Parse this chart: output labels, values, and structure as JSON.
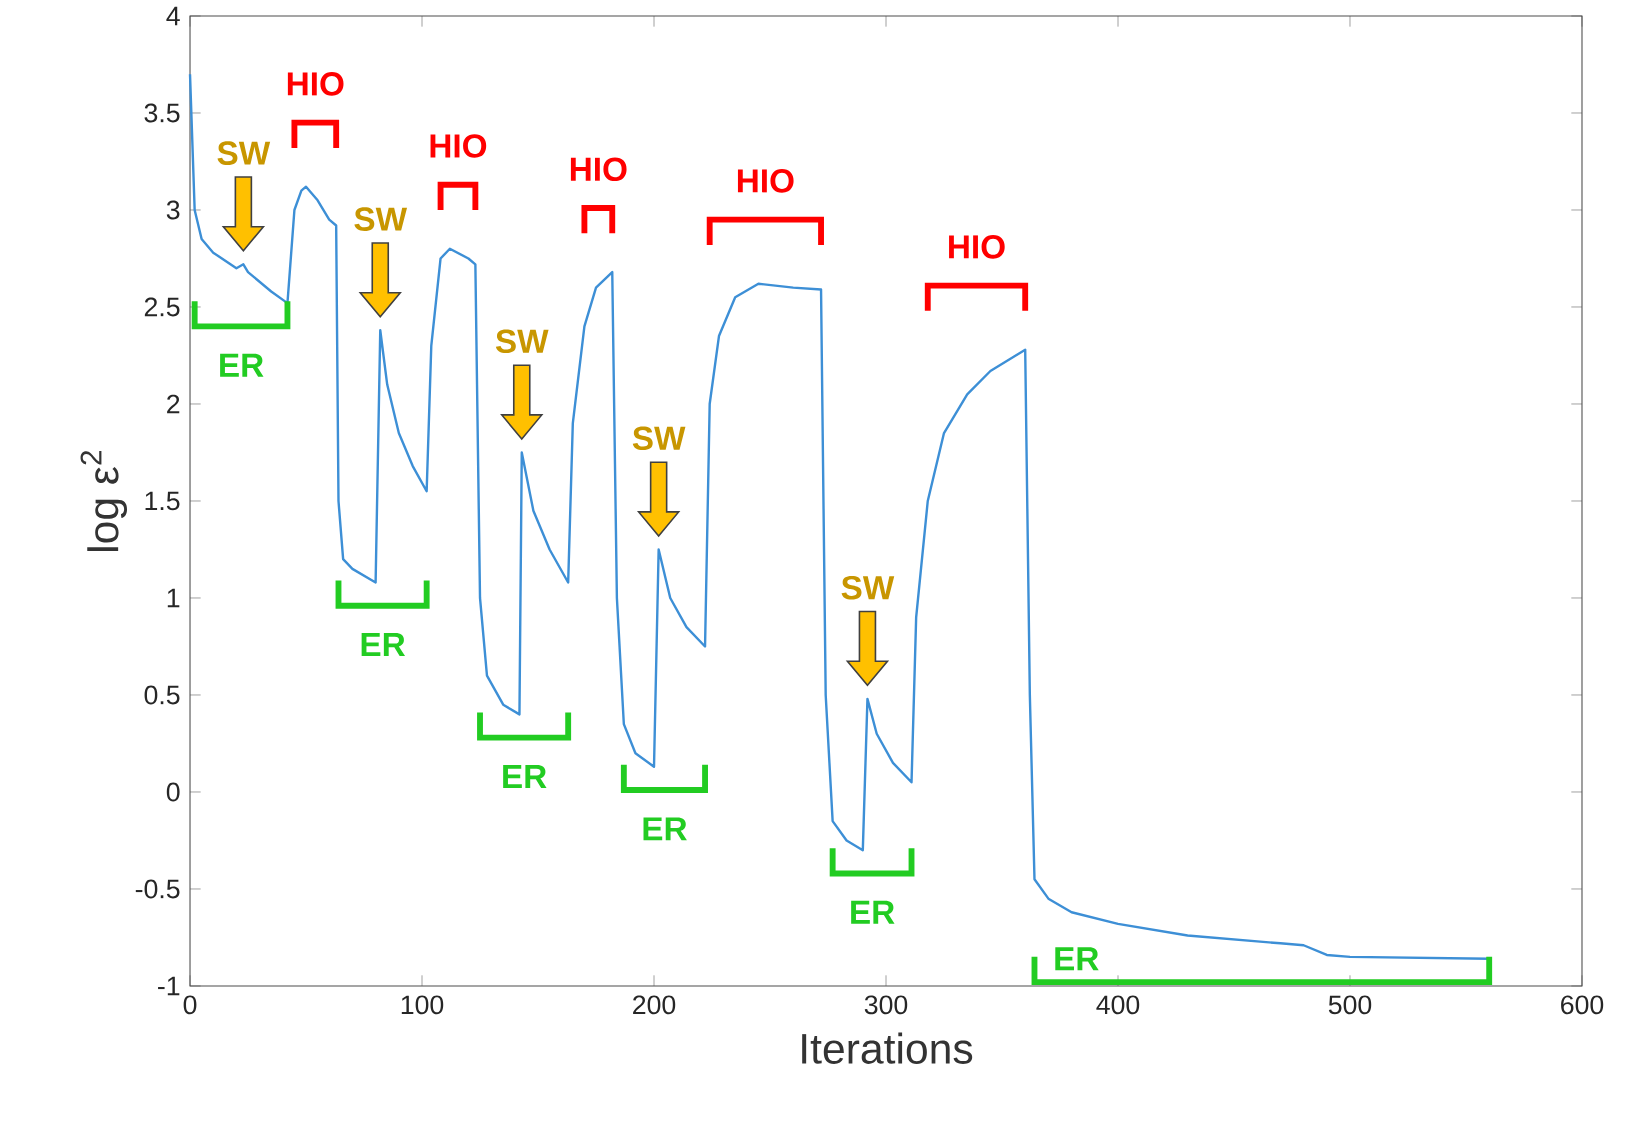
{
  "chart_data": {
    "type": "line",
    "xlabel": "Iterations",
    "ylabel": "log ε$^{2}$",
    "xlim": [
      0,
      600
    ],
    "xticks": [
      0,
      100,
      200,
      300,
      400,
      500,
      600
    ],
    "ylim": [
      -1,
      4
    ],
    "yticks": [
      -1,
      -0.5,
      0,
      0.5,
      1,
      1.5,
      2,
      2.5,
      3,
      3.5,
      4
    ],
    "grid": false,
    "marker": "none",
    "line_style": "solid",
    "series": [
      {
        "color": "#3d8fd6",
        "x": [
          0,
          2,
          5,
          10,
          20,
          23,
          25,
          35,
          42,
          45,
          48,
          50,
          55,
          60,
          63,
          64,
          66,
          70,
          80,
          82,
          85,
          90,
          96,
          102,
          104,
          108,
          112,
          120,
          123,
          125,
          128,
          135,
          142,
          143,
          148,
          155,
          163,
          165,
          170,
          175,
          182,
          184,
          187,
          192,
          200,
          202,
          207,
          214,
          222,
          224,
          228,
          235,
          245,
          260,
          272,
          274,
          277,
          283,
          290,
          292,
          296,
          303,
          311,
          313,
          318,
          325,
          335,
          345,
          360,
          362,
          364,
          370,
          380,
          400,
          430,
          470,
          480,
          490,
          500,
          560
        ],
        "values": [
          3.7,
          3.0,
          2.85,
          2.78,
          2.7,
          2.72,
          2.68,
          2.58,
          2.52,
          3.0,
          3.1,
          3.12,
          3.05,
          2.95,
          2.92,
          1.5,
          1.2,
          1.15,
          1.08,
          2.38,
          2.1,
          1.85,
          1.68,
          1.55,
          2.3,
          2.75,
          2.8,
          2.75,
          2.72,
          1.0,
          0.6,
          0.45,
          0.4,
          1.75,
          1.45,
          1.25,
          1.08,
          1.9,
          2.4,
          2.6,
          2.68,
          1.0,
          0.35,
          0.2,
          0.13,
          1.25,
          1.0,
          0.85,
          0.75,
          2.0,
          2.35,
          2.55,
          2.62,
          2.6,
          2.59,
          0.5,
          -0.15,
          -0.25,
          -0.3,
          0.48,
          0.3,
          0.15,
          0.05,
          0.9,
          1.5,
          1.85,
          2.05,
          2.17,
          2.28,
          0.5,
          -0.45,
          -0.55,
          -0.62,
          -0.68,
          -0.74,
          -0.78,
          -0.79,
          -0.84,
          -0.85,
          -0.86
        ]
      }
    ],
    "annotations": [
      "ER",
      "HIO",
      "ER",
      "HIO",
      "ER",
      "HIO",
      "ER",
      "HIO",
      "ER",
      "HIO",
      "ER",
      {
        "text": "SW",
        "x": 23,
        "y": 2.72
      },
      {
        "text": "SW",
        "x": 82,
        "y": 2.38
      },
      {
        "text": "SW",
        "x": 143,
        "y": 1.75
      },
      {
        "text": "SW",
        "x": 202,
        "y": 1.25
      },
      {
        "text": "SW",
        "x": 292,
        "y": 0.48
      }
    ]
  }
}
